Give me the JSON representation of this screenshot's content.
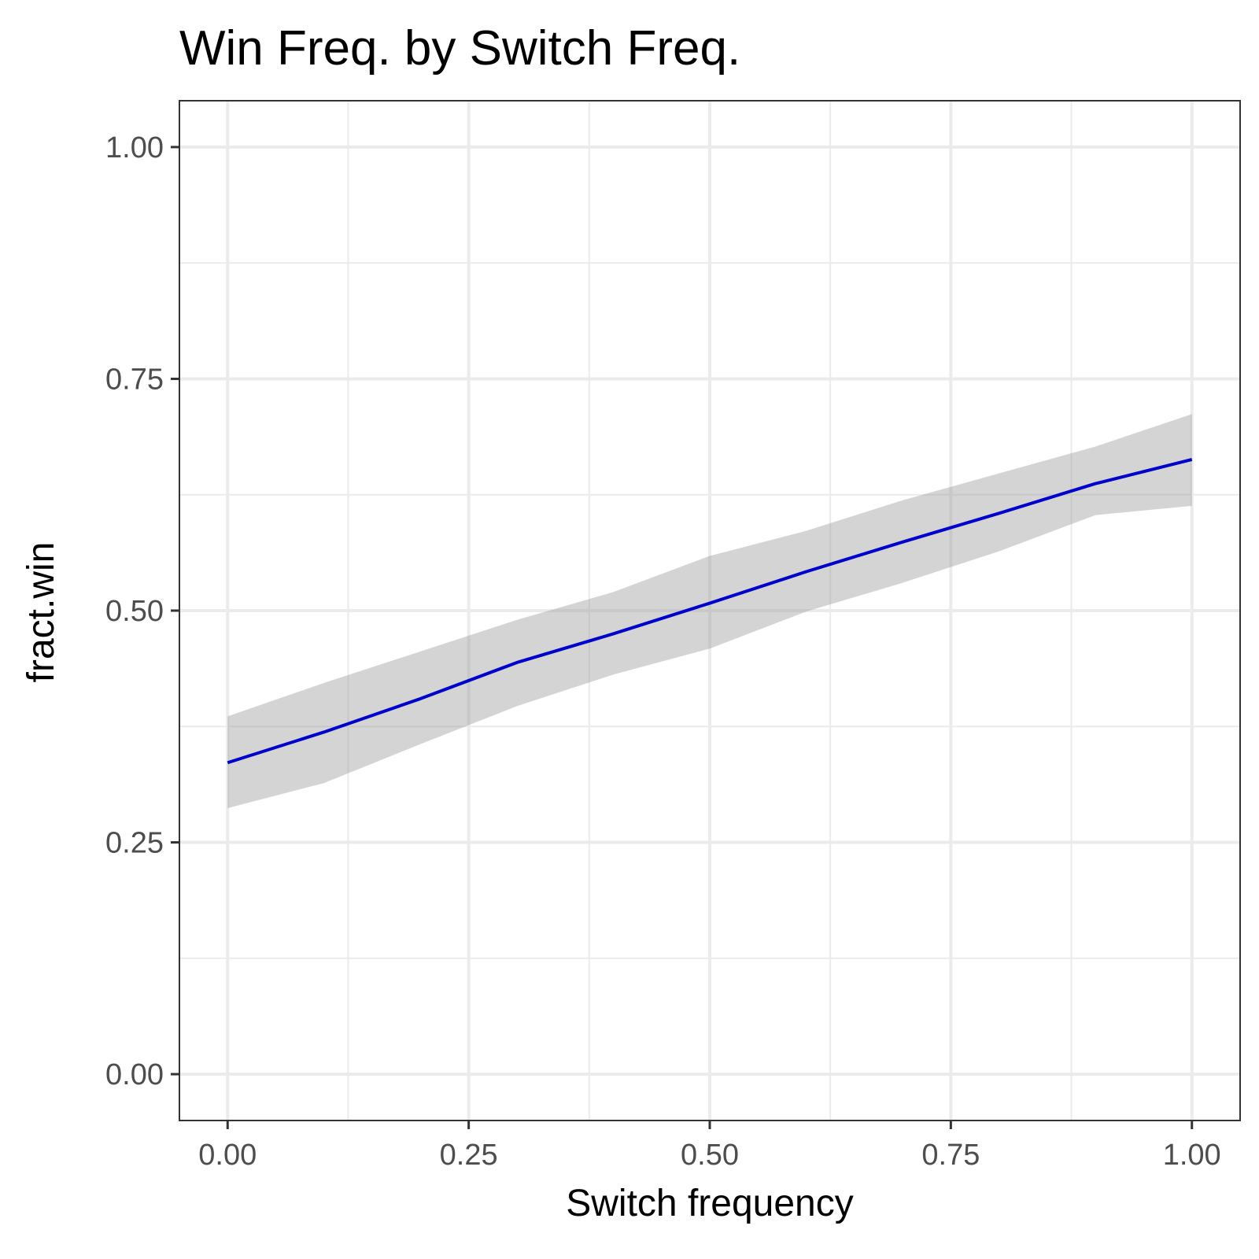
{
  "chart_data": {
    "type": "line",
    "title": "Win Freq. by Switch Freq.",
    "xlabel": "Switch frequency",
    "ylabel": "fract.win",
    "xlim": [
      -0.05,
      1.05
    ],
    "ylim": [
      -0.05,
      1.05
    ],
    "x_ticks": [
      0,
      0.25,
      0.5,
      0.75,
      1
    ],
    "x_tick_labels": [
      "0.00",
      "0.25",
      "0.50",
      "0.75",
      "1.00"
    ],
    "y_ticks": [
      0,
      0.25,
      0.5,
      0.75,
      1
    ],
    "y_tick_labels": [
      "0.00",
      "0.25",
      "0.50",
      "0.75",
      "1.00"
    ],
    "grid": true,
    "series": [
      {
        "x": [
          0,
          0.1,
          0.2,
          0.3,
          0.4,
          0.5,
          0.6,
          0.7,
          0.8,
          0.9,
          1.0
        ],
        "values": [
          0.336,
          0.369,
          0.405,
          0.444,
          0.475,
          0.508,
          0.542,
          0.574,
          0.605,
          0.637,
          0.663
        ],
        "lower": [
          0.287,
          0.314,
          0.356,
          0.397,
          0.431,
          0.459,
          0.499,
          0.53,
          0.564,
          0.603,
          0.613
        ],
        "upper": [
          0.386,
          0.422,
          0.456,
          0.49,
          0.52,
          0.559,
          0.586,
          0.619,
          0.648,
          0.677,
          0.712
        ]
      }
    ],
    "colors": {
      "line": "#0000cc",
      "ribbon": "#999999",
      "grid": "#ebebeb",
      "panel_border": "#333333",
      "tick_text": "#4d4d4d"
    }
  }
}
